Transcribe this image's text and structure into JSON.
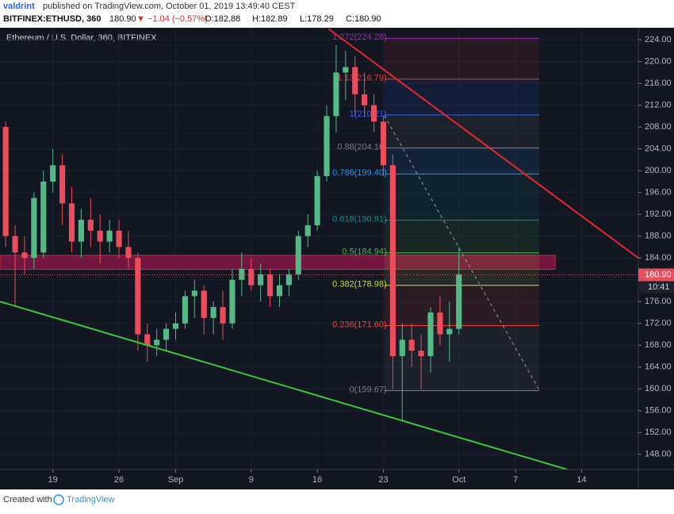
{
  "header": {
    "author": "valdrint",
    "published": "published on TradingView.com, October 01, 2019 13:49:40 CEST",
    "symbol": "BITFINEX:ETHUSD, 360",
    "price": "180.90",
    "change": "▼ −1.04 (−0.57%)",
    "ohlc": [
      "O:182.88",
      "H:182.89",
      "L:178.29",
      "C:180.90"
    ]
  },
  "footer": {
    "created": "Created with",
    "brand": "TradingView"
  },
  "chart_data": {
    "type": "candlestick",
    "title": "Ethereum / U.S. Dollar, 360, BITFINEX",
    "x": [
      0,
      1,
      2,
      3,
      4,
      5,
      6,
      7,
      8,
      9,
      10,
      11,
      12,
      13,
      14,
      15,
      16,
      17,
      18,
      19,
      20,
      21,
      22,
      23,
      24,
      25,
      26,
      27,
      28,
      29,
      30,
      31,
      32,
      33,
      34,
      35,
      36,
      37,
      38,
      39,
      40,
      41,
      42,
      43,
      44,
      45,
      46,
      47,
      48
    ],
    "open": [
      208,
      188,
      185,
      184,
      185,
      198,
      201,
      194,
      187,
      191,
      189,
      187,
      189,
      186,
      184,
      170,
      168,
      169,
      171,
      172,
      177,
      178,
      173,
      175,
      172,
      180,
      182,
      179,
      181,
      177,
      179,
      181,
      188,
      190,
      199,
      210,
      218,
      219,
      214,
      212,
      209,
      201,
      166,
      169,
      167,
      166,
      174,
      170,
      171
    ],
    "high": [
      209,
      190,
      188,
      196,
      200,
      204,
      203,
      197,
      193,
      195,
      192,
      191,
      191,
      189,
      185,
      172,
      171,
      172,
      174,
      178,
      180,
      179,
      176,
      178,
      182,
      185,
      184,
      183,
      182,
      181,
      182,
      189,
      192,
      200,
      212,
      223,
      222,
      221,
      218,
      214,
      210,
      203,
      172,
      172,
      170,
      175,
      177,
      176,
      186
    ],
    "low": [
      186,
      175,
      181,
      182,
      184,
      196,
      190,
      185,
      184,
      186,
      183,
      185,
      184,
      182,
      167,
      165,
      166,
      167,
      169,
      171,
      173,
      170,
      170,
      169,
      171,
      177,
      178,
      176,
      175,
      175,
      177,
      180,
      186,
      189,
      198,
      207,
      213,
      210,
      210,
      207,
      199,
      160,
      154,
      164,
      160,
      163,
      168,
      165,
      170
    ],
    "close": [
      188,
      185,
      184,
      195,
      198,
      201,
      194,
      187,
      191,
      189,
      187,
      189,
      186,
      184,
      170,
      168,
      169,
      171,
      172,
      177,
      178,
      173,
      175,
      172,
      180,
      182,
      179,
      181,
      177,
      179,
      181,
      188,
      190,
      199,
      210,
      218,
      219,
      214,
      212,
      209,
      201,
      166,
      169,
      167,
      166,
      174,
      170,
      171,
      181
    ],
    "up_color": "#53b987",
    "down_color": "#eb4d5c",
    "xlim": [
      -0.6,
      67
    ],
    "xticks": [
      {
        "value": 5,
        "label": "19"
      },
      {
        "value": 12,
        "label": "26"
      },
      {
        "value": 18,
        "label": "Sep"
      },
      {
        "value": 26,
        "label": "9"
      },
      {
        "value": 33,
        "label": "16"
      },
      {
        "value": 40,
        "label": "23"
      },
      {
        "value": 48,
        "label": "Oct"
      },
      {
        "value": 54,
        "label": "7"
      },
      {
        "value": 61,
        "label": "14"
      }
    ],
    "ylim": [
      145.2,
      226.2
    ],
    "yticks": [
      {
        "value": 148,
        "label": "148.00"
      },
      {
        "value": 152,
        "label": "152.00"
      },
      {
        "value": 156,
        "label": "156.00"
      },
      {
        "value": 160,
        "label": "160.00"
      },
      {
        "value": 164,
        "label": "164.00"
      },
      {
        "value": 168,
        "label": "168.00"
      },
      {
        "value": 172,
        "label": "172.00"
      },
      {
        "value": 176,
        "label": "176.00"
      },
      {
        "value": 180,
        "label": "180.00"
      },
      {
        "value": 184,
        "label": "184.00"
      },
      {
        "value": 188,
        "label": "188.00"
      },
      {
        "value": 192,
        "label": "192.00"
      },
      {
        "value": 196,
        "label": "196.00"
      },
      {
        "value": 200,
        "label": "200.00"
      },
      {
        "value": 204,
        "label": "204.00"
      },
      {
        "value": 208,
        "label": "208.00"
      },
      {
        "value": 212,
        "label": "212.00"
      },
      {
        "value": 216,
        "label": "216.00"
      },
      {
        "value": 220,
        "label": "220.00"
      },
      {
        "value": 224,
        "label": "224.00"
      }
    ],
    "grid": true,
    "zones": [
      {
        "color": "#c2185b",
        "x": [
          -0.6,
          58.2
        ],
        "y": [
          181.9,
          184.5
        ]
      }
    ],
    "fib": {
      "x": [
        40.1,
        56.5
      ],
      "levels": [
        {
          "value": 224.28,
          "label": "1.272(224.28)",
          "color": "#9c27b0"
        },
        {
          "value": 216.79,
          "label": "1.13(216.79)",
          "color": "#e53935"
        },
        {
          "value": 210.21,
          "label": "1(210.21)",
          "color": "#2962ff"
        },
        {
          "value": 204.16,
          "label": "0.88(204.16)",
          "color": "#787b86"
        },
        {
          "value": 199.4,
          "label": "0.786(199.40)",
          "color": "#2196f3"
        },
        {
          "value": 190.91,
          "label": "0.618(190.91)",
          "color": "#009688"
        },
        {
          "value": 184.94,
          "label": "0.5(184.94)",
          "color": "#4caf50"
        },
        {
          "value": 178.98,
          "label": "0.382(178.98)",
          "color": "#cddc39"
        },
        {
          "value": 171.6,
          "label": "0.236(171.60)",
          "color": "#f44336"
        },
        {
          "value": 159.67,
          "label": "0(159.67)",
          "color": "#787b86"
        }
      ]
    },
    "trendlines": [
      {
        "color": "#e8262d",
        "dashed": false,
        "x": [
          34.2,
          67
        ],
        "y": [
          226,
          184
        ]
      },
      {
        "color": "#3cc63a",
        "dashed": false,
        "x": [
          -0.6,
          59.5
        ],
        "y": [
          176,
          145.2
        ]
      },
      {
        "color": "#9598a1",
        "dashed": true,
        "x": [
          40.1,
          56.5
        ],
        "y": [
          210.1,
          159.8
        ]
      }
    ],
    "last_price": {
      "value": 180.9,
      "label": "180.90",
      "color": "#eb4d5c"
    },
    "countdown": "10:41"
  }
}
